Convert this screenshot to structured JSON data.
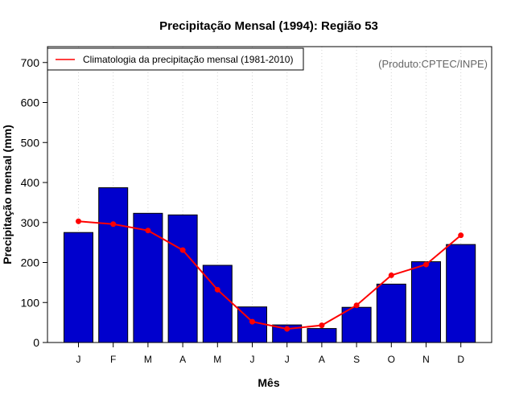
{
  "chart_data": {
    "type": "bar",
    "title": "Precipitação Mensal (1994): Região 53",
    "xlabel": "Mês",
    "ylabel": "Precipitação mensal (mm)",
    "ylim": [
      0,
      740
    ],
    "yticks": [
      0,
      100,
      200,
      300,
      400,
      500,
      600,
      700
    ],
    "categories": [
      "J",
      "F",
      "M",
      "A",
      "M",
      "J",
      "J",
      "A",
      "S",
      "O",
      "N",
      "D"
    ],
    "series": [
      {
        "name": "Precipitação mensal (1994)",
        "kind": "bar",
        "color": "#0000cd",
        "values": [
          275,
          387,
          323,
          319,
          193,
          89,
          44,
          35,
          88,
          146,
          202,
          245
        ]
      },
      {
        "name": "Climatologia da precipitação mensal (1981-2010)",
        "kind": "line",
        "color": "#ff0000",
        "values": [
          303,
          296,
          280,
          231,
          132,
          52,
          34,
          43,
          93,
          168,
          195,
          268
        ]
      }
    ],
    "legend": {
      "position": "top-left",
      "entries": [
        "Climatologia da precipitação mensal (1981-2010)"
      ]
    },
    "credit": "(Produto:CPTEC/INPE)",
    "grid": "vertical-dotted"
  }
}
